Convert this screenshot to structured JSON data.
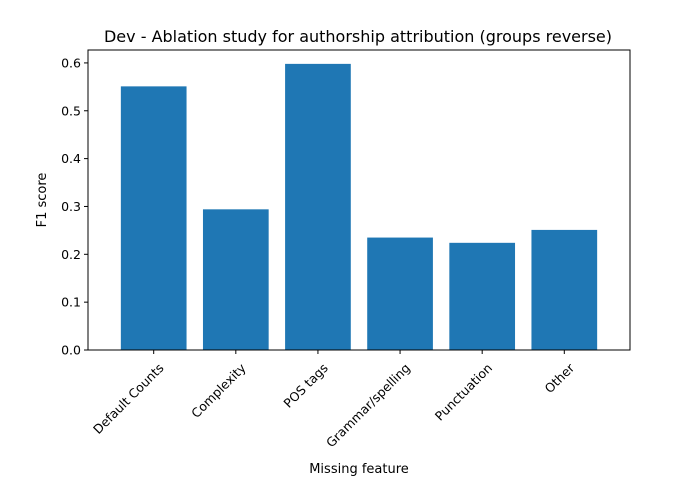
{
  "chart_data": {
    "type": "bar",
    "title": "Dev - Ablation study for authorship attribution (groups reverse)",
    "xlabel": "Missing feature",
    "ylabel": "F1 score",
    "categories": [
      "Default Counts",
      "Complexity",
      "POS tags",
      "Grammar/spelling",
      "Punctuation",
      "Other"
    ],
    "values": [
      0.551,
      0.294,
      0.598,
      0.235,
      0.224,
      0.251
    ],
    "ylim": [
      0,
      0.627
    ],
    "yticks": [
      "0.0",
      "0.1",
      "0.2",
      "0.3",
      "0.4",
      "0.5",
      "0.6"
    ],
    "bar_color": "#1f77b4",
    "grid": false,
    "legend": "none"
  }
}
